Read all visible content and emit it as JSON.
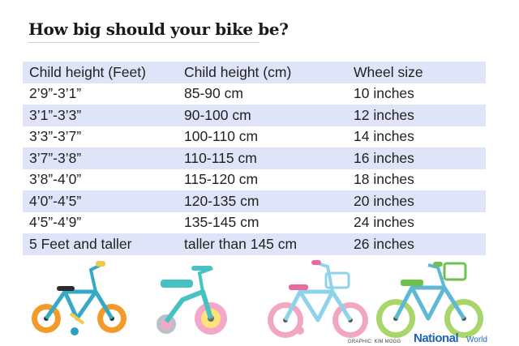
{
  "title": "How big should your bike be?",
  "table": {
    "headers": [
      "Child height (Feet)",
      "Child height (cm)",
      "Wheel size"
    ],
    "rows": [
      [
        "2’9”-3’1”",
        "85-90 cm",
        "10 inches"
      ],
      [
        "3’1”-3’3”",
        "90-100 cm",
        "12 inches"
      ],
      [
        "3’3”-3’7”",
        "100-110 cm",
        "14 inches"
      ],
      [
        "3’7”-3’8”",
        "110-115 cm",
        "16 inches"
      ],
      [
        "3’8”-4’0”",
        "115-120 cm",
        "18 inches"
      ],
      [
        "4’0”-4’5”",
        "120-135 cm",
        "20 inches"
      ],
      [
        "4’5”-4’9”",
        "135-145 cm",
        "24 inches"
      ],
      [
        "5 Feet and taller",
        "taller than 145 cm",
        "26 inches"
      ]
    ]
  },
  "footer": {
    "credit": "GRAPHIC: KIM MOGG",
    "brand_bold": "National",
    "brand_light": "World"
  },
  "colors": {
    "row_shade": "#dfe4f8",
    "brand": "#1f63b8"
  }
}
